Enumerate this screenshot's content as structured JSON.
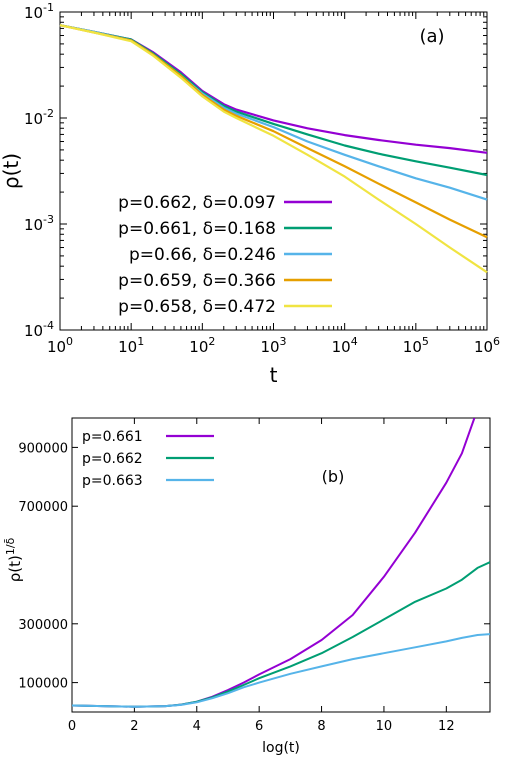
{
  "chart_data": [
    {
      "type": "line",
      "panel_label": "(a)",
      "xlabel": "t",
      "ylabel": "ρ(t)",
      "x_scale": "log",
      "y_scale": "log",
      "xlim": [
        1,
        1000000
      ],
      "ylim": [
        0.0001,
        0.1
      ],
      "x_ticks": [
        {
          "value": 1,
          "base": "10",
          "exp": "0"
        },
        {
          "value": 10,
          "base": "10",
          "exp": "1"
        },
        {
          "value": 100,
          "base": "10",
          "exp": "2"
        },
        {
          "value": 1000,
          "base": "10",
          "exp": "3"
        },
        {
          "value": 10000,
          "base": "10",
          "exp": "4"
        },
        {
          "value": 100000,
          "base": "10",
          "exp": "5"
        },
        {
          "value": 1000000,
          "base": "10",
          "exp": "6"
        }
      ],
      "y_ticks": [
        {
          "value": 0.1,
          "base": "10",
          "exp": "-1"
        },
        {
          "value": 0.01,
          "base": "10",
          "exp": "-2"
        },
        {
          "value": 0.001,
          "base": "10",
          "exp": "-3"
        },
        {
          "value": 0.0001,
          "base": "10",
          "exp": "-4"
        }
      ],
      "grid": false,
      "legend_position": "bottom-left",
      "series": [
        {
          "name": "p=0.662, δ=0.097",
          "color": "#9400d3",
          "x": [
            1,
            3,
            10,
            20,
            50,
            100,
            200,
            300,
            1000,
            3000,
            10000,
            30000,
            100000,
            300000,
            1000000
          ],
          "y": [
            0.075,
            0.065,
            0.055,
            0.042,
            0.027,
            0.018,
            0.0135,
            0.012,
            0.0095,
            0.008,
            0.0069,
            0.0062,
            0.0056,
            0.0052,
            0.0047
          ]
        },
        {
          "name": "p=0.661, δ=0.168",
          "color": "#009e73",
          "x": [
            1,
            3,
            10,
            20,
            50,
            100,
            200,
            300,
            1000,
            3000,
            10000,
            30000,
            100000,
            300000,
            1000000
          ],
          "y": [
            0.075,
            0.065,
            0.055,
            0.041,
            0.026,
            0.0175,
            0.013,
            0.0115,
            0.0088,
            0.007,
            0.0055,
            0.0046,
            0.0039,
            0.0034,
            0.0029
          ]
        },
        {
          "name": "p=0.66, δ=0.246",
          "color": "#56b4e9",
          "x": [
            1,
            3,
            10,
            20,
            50,
            100,
            200,
            300,
            1000,
            3000,
            10000,
            30000,
            100000,
            300000,
            1000000
          ],
          "y": [
            0.075,
            0.065,
            0.054,
            0.04,
            0.025,
            0.017,
            0.0125,
            0.011,
            0.0082,
            0.006,
            0.0045,
            0.0035,
            0.0027,
            0.0022,
            0.0017
          ]
        },
        {
          "name": "p=0.659, δ=0.366",
          "color": "#e69f00",
          "x": [
            1,
            3,
            10,
            20,
            50,
            100,
            200,
            300,
            1000,
            3000,
            10000,
            30000,
            100000,
            300000,
            1000000
          ],
          "y": [
            0.075,
            0.064,
            0.054,
            0.04,
            0.025,
            0.0165,
            0.012,
            0.0105,
            0.0075,
            0.0052,
            0.0035,
            0.0024,
            0.0016,
            0.0011,
            0.00075
          ]
        },
        {
          "name": "p=0.658, δ=0.472",
          "color": "#f0e442",
          "x": [
            1,
            3,
            10,
            20,
            50,
            100,
            200,
            300,
            1000,
            3000,
            10000,
            30000,
            100000,
            300000,
            1000000
          ],
          "y": [
            0.075,
            0.064,
            0.053,
            0.039,
            0.024,
            0.016,
            0.0115,
            0.01,
            0.0068,
            0.0045,
            0.0028,
            0.0017,
            0.001,
            0.0006,
            0.00035
          ]
        }
      ]
    },
    {
      "type": "line",
      "panel_label": "(b)",
      "xlabel": "log(t)",
      "ylabel_main": "ρ(t)",
      "ylabel_sup": "1/δ̄",
      "x_scale": "linear",
      "y_scale": "linear",
      "xlim": [
        0,
        13.4
      ],
      "ylim": [
        0,
        1000000
      ],
      "x_ticks": [
        0,
        2,
        4,
        6,
        8,
        10,
        12
      ],
      "y_ticks": [
        100000,
        300000,
        700000,
        900000
      ],
      "grid": false,
      "legend_position": "top-left",
      "series": [
        {
          "name": "p=0.661",
          "color": "#9400d3",
          "x": [
            0,
            1,
            2,
            3,
            3.5,
            4,
            4.5,
            5,
            5.5,
            6,
            7,
            8,
            9,
            10,
            11,
            12,
            12.5,
            12.9
          ],
          "y": [
            22000,
            20000,
            18000,
            20000,
            25000,
            35000,
            52000,
            75000,
            100000,
            128000,
            180000,
            245000,
            330000,
            460000,
            610000,
            780000,
            880000,
            1000000
          ]
        },
        {
          "name": "p=0.662",
          "color": "#009e73",
          "x": [
            0,
            1,
            2,
            3,
            3.5,
            4,
            4.5,
            5,
            5.5,
            6,
            7,
            8,
            9,
            10,
            11,
            12,
            12.5,
            13,
            13.4
          ],
          "y": [
            22000,
            20000,
            18000,
            20000,
            25000,
            35000,
            50000,
            70000,
            92000,
            115000,
            155000,
            200000,
            255000,
            315000,
            375000,
            420000,
            450000,
            490000,
            510000
          ]
        },
        {
          "name": "p=0.663",
          "color": "#56b4e9",
          "x": [
            0,
            1,
            2,
            3,
            3.5,
            4,
            4.5,
            5,
            5.5,
            6,
            7,
            8,
            9,
            10,
            11,
            12,
            12.5,
            13,
            13.4
          ],
          "y": [
            22000,
            20000,
            18000,
            20000,
            24000,
            33000,
            47000,
            64000,
            84000,
            100000,
            130000,
            155000,
            180000,
            200000,
            220000,
            240000,
            252000,
            262000,
            265000
          ]
        }
      ]
    }
  ]
}
